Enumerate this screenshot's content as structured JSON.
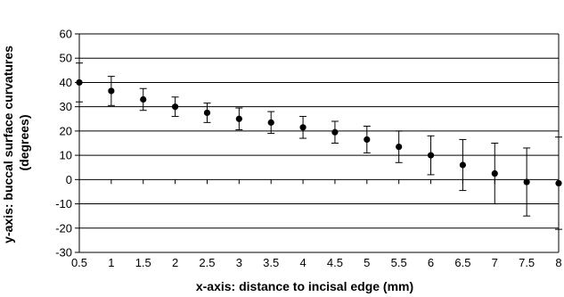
{
  "chart_data": {
    "type": "scatter",
    "title": "",
    "xlabel": "x-axis: distance to incisal edge (mm)",
    "ylabel_lines": [
      "y-axis: buccal surface curvatures",
      "(degrees)"
    ],
    "xlim": [
      0.5,
      8
    ],
    "ylim": [
      -30,
      60
    ],
    "x_ticks": [
      "0.5",
      "1",
      "1.5",
      "2",
      "2.5",
      "3",
      "3.5",
      "4",
      "4.5",
      "5",
      "5.5",
      "6",
      "6.5",
      "7",
      "7.5",
      "8"
    ],
    "y_ticks": [
      "60",
      "50",
      "40",
      "30",
      "20",
      "10",
      "0",
      "-10",
      "-20",
      "-30"
    ],
    "grid": "horizontal",
    "legend": "none",
    "series": [
      {
        "x": [
          0.5,
          1,
          1.5,
          2,
          2.5,
          3,
          3.5,
          4,
          4.5,
          5,
          5.5,
          6,
          6.5,
          7,
          7.5,
          8
        ],
        "y": [
          40,
          36.5,
          33,
          30,
          27.5,
          25,
          23.5,
          21.5,
          19.5,
          16.5,
          13.5,
          10,
          6,
          2.5,
          -1,
          -1.5
        ],
        "error": [
          8,
          6,
          4.5,
          4,
          4,
          4.5,
          4.5,
          4.5,
          4.5,
          5.5,
          6.5,
          8,
          10.5,
          12.5,
          14,
          19
        ]
      }
    ],
    "colors": {
      "marker": "#000000",
      "grid": "#000000",
      "error_bar": "#000000"
    }
  }
}
